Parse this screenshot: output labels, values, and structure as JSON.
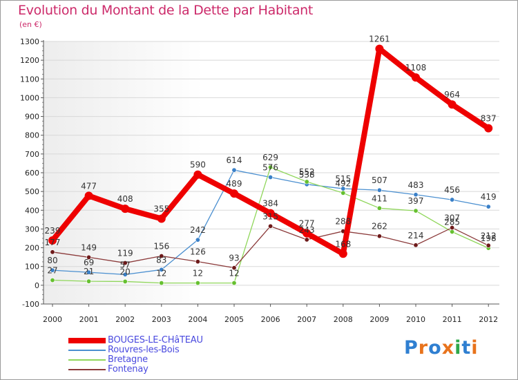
{
  "header": {
    "title": "Evolution du Montant de la Dette par Habitant",
    "subtitle": "(en €)"
  },
  "brand": {
    "text": "Proxiti",
    "letter_colors": [
      "#2f7fd1",
      "#e8731c",
      "#2f7fd1",
      "#e8731c",
      "#2fa84a",
      "#2f7fd1",
      "#e8731c"
    ]
  },
  "chart_data": {
    "type": "line",
    "title": "Evolution du Montant de la Dette par Habitant",
    "subtitle": "(en €)",
    "xlabel": "",
    "ylabel": "",
    "x": [
      "2000",
      "2001",
      "2002",
      "2003",
      "2004",
      "2005",
      "2006",
      "2007",
      "2008",
      "2009",
      "2010",
      "2011",
      "2012"
    ],
    "ylim": [
      -100,
      1300
    ],
    "yticks": [
      -100,
      0,
      100,
      200,
      300,
      400,
      500,
      600,
      700,
      800,
      900,
      1000,
      1100,
      1200,
      1300
    ],
    "grid": "horizontal",
    "legend_position": "bottom-left",
    "series": [
      {
        "name": "BOUGES-LE-CHâTEAU",
        "color": "#ee0000",
        "style": "thick",
        "values": [
          239,
          477,
          408,
          355,
          590,
          489,
          384,
          277,
          168,
          1261,
          1108,
          964,
          837
        ]
      },
      {
        "name": "Rouvres-les-Bois",
        "color": "#4a8fd0",
        "marker": "#3a80c8",
        "values": [
          80,
          69,
          57,
          83,
          242,
          614,
          576,
          538,
          515,
          507,
          483,
          456,
          419
        ]
      },
      {
        "name": "Bretagne",
        "color": "#8fd65a",
        "marker": "#66c030",
        "values": [
          27,
          21,
          20,
          12,
          12,
          12,
          629,
          552,
          492,
          411,
          397,
          285,
          198
        ]
      },
      {
        "name": "Fontenay",
        "color": "#8b3a3a",
        "marker": "#6e1a1a",
        "values": [
          177,
          149,
          119,
          156,
          126,
          93,
          315,
          243,
          288,
          262,
          214,
          307,
          212
        ]
      }
    ]
  }
}
